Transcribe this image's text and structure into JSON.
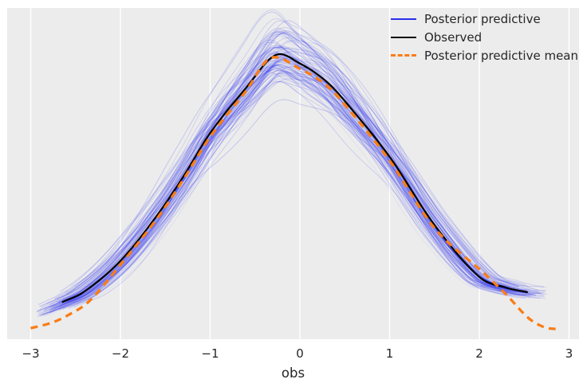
{
  "figure": {
    "background": "#ffffff",
    "plot_background": "#ececec",
    "grid_color": "#ffffff",
    "text_color": "#262626"
  },
  "x_axis": {
    "label": "obs",
    "tick_labels": [
      "−3",
      "−2",
      "−1",
      "0",
      "1",
      "2",
      "3"
    ],
    "tick_values": [
      -3,
      -2,
      -1,
      0,
      1,
      2,
      3
    ]
  },
  "legend": {
    "items": [
      {
        "label": "Posterior predictive",
        "color": "#2a2eec",
        "dash": false,
        "thickness": 2.5
      },
      {
        "label": "Observed",
        "color": "#000000",
        "dash": false,
        "thickness": 2.2
      },
      {
        "label": "Posterior predictive mean",
        "color": "#fa7c17",
        "dash": true,
        "thickness": 3.5
      }
    ]
  },
  "chart_data": {
    "type": "line",
    "title": "",
    "xlabel": "obs",
    "ylabel": "",
    "xlim": [
      -3.262,
      3.111
    ],
    "ylim": [
      -0.0114,
      0.4215
    ],
    "grid": "vertical-only",
    "legend_position": "upper right",
    "x_ticks": [
      -3,
      -2,
      -1,
      0,
      1,
      2,
      3
    ],
    "series": [
      {
        "name": "Posterior predictive",
        "kind": "kde-ensemble",
        "color": "#2a2eec",
        "count": 100,
        "line_width": 1.0,
        "alpha_min": 0.06,
        "alpha_spread": 0.16,
        "seed": 20240607,
        "peak_x": -0.3,
        "amp_sigma": 0.055,
        "shift_sigma": 0.05,
        "width_sigma": 0.04,
        "x_end_left": [
          -2.95,
          -2.5
        ],
        "x_end_right": [
          2.3,
          2.75
        ],
        "base_points": [
          [
            -3.05,
            0.018
          ],
          [
            -2.65,
            0.037
          ],
          [
            -2.4,
            0.051
          ],
          [
            -2.0,
            0.091
          ],
          [
            -1.6,
            0.149
          ],
          [
            -1.3,
            0.201
          ],
          [
            -1.0,
            0.258
          ],
          [
            -0.6,
            0.317
          ],
          [
            -0.27,
            0.36
          ],
          [
            0.0,
            0.349
          ],
          [
            0.3,
            0.325
          ],
          [
            0.55,
            0.293
          ],
          [
            1.0,
            0.227
          ],
          [
            1.5,
            0.138
          ],
          [
            2.0,
            0.07
          ],
          [
            2.3,
            0.056
          ],
          [
            2.54,
            0.05
          ],
          [
            2.85,
            0.047
          ]
        ]
      },
      {
        "name": "Observed",
        "kind": "kde-line",
        "color": "#000000",
        "line_width": 2.2,
        "dash": null,
        "points": [
          [
            -2.65,
            0.037
          ],
          [
            -2.4,
            0.051
          ],
          [
            -2.0,
            0.091
          ],
          [
            -1.6,
            0.149
          ],
          [
            -1.3,
            0.201
          ],
          [
            -1.0,
            0.258
          ],
          [
            -0.6,
            0.317
          ],
          [
            -0.27,
            0.36
          ],
          [
            0.0,
            0.349
          ],
          [
            0.3,
            0.325
          ],
          [
            0.55,
            0.293
          ],
          [
            1.0,
            0.227
          ],
          [
            1.5,
            0.138
          ],
          [
            2.0,
            0.07
          ],
          [
            2.3,
            0.056
          ],
          [
            2.54,
            0.05
          ]
        ]
      },
      {
        "name": "Posterior predictive mean",
        "kind": "kde-line",
        "color": "#fa7c17",
        "line_width": 3.3,
        "dash": [
          9,
          6.5
        ],
        "points": [
          [
            -3.0,
            0.003
          ],
          [
            -2.77,
            0.01
          ],
          [
            -2.6,
            0.019
          ],
          [
            -2.35,
            0.038
          ],
          [
            -2.0,
            0.086
          ],
          [
            -1.6,
            0.145
          ],
          [
            -1.3,
            0.197
          ],
          [
            -1.0,
            0.253
          ],
          [
            -0.6,
            0.313
          ],
          [
            -0.33,
            0.356
          ],
          [
            0.0,
            0.342
          ],
          [
            0.3,
            0.32
          ],
          [
            0.55,
            0.288
          ],
          [
            1.0,
            0.222
          ],
          [
            1.5,
            0.134
          ],
          [
            2.05,
            0.075
          ],
          [
            2.3,
            0.047
          ],
          [
            2.55,
            0.016
          ],
          [
            2.73,
            0.004
          ],
          [
            2.85,
            0.002
          ]
        ]
      }
    ]
  }
}
